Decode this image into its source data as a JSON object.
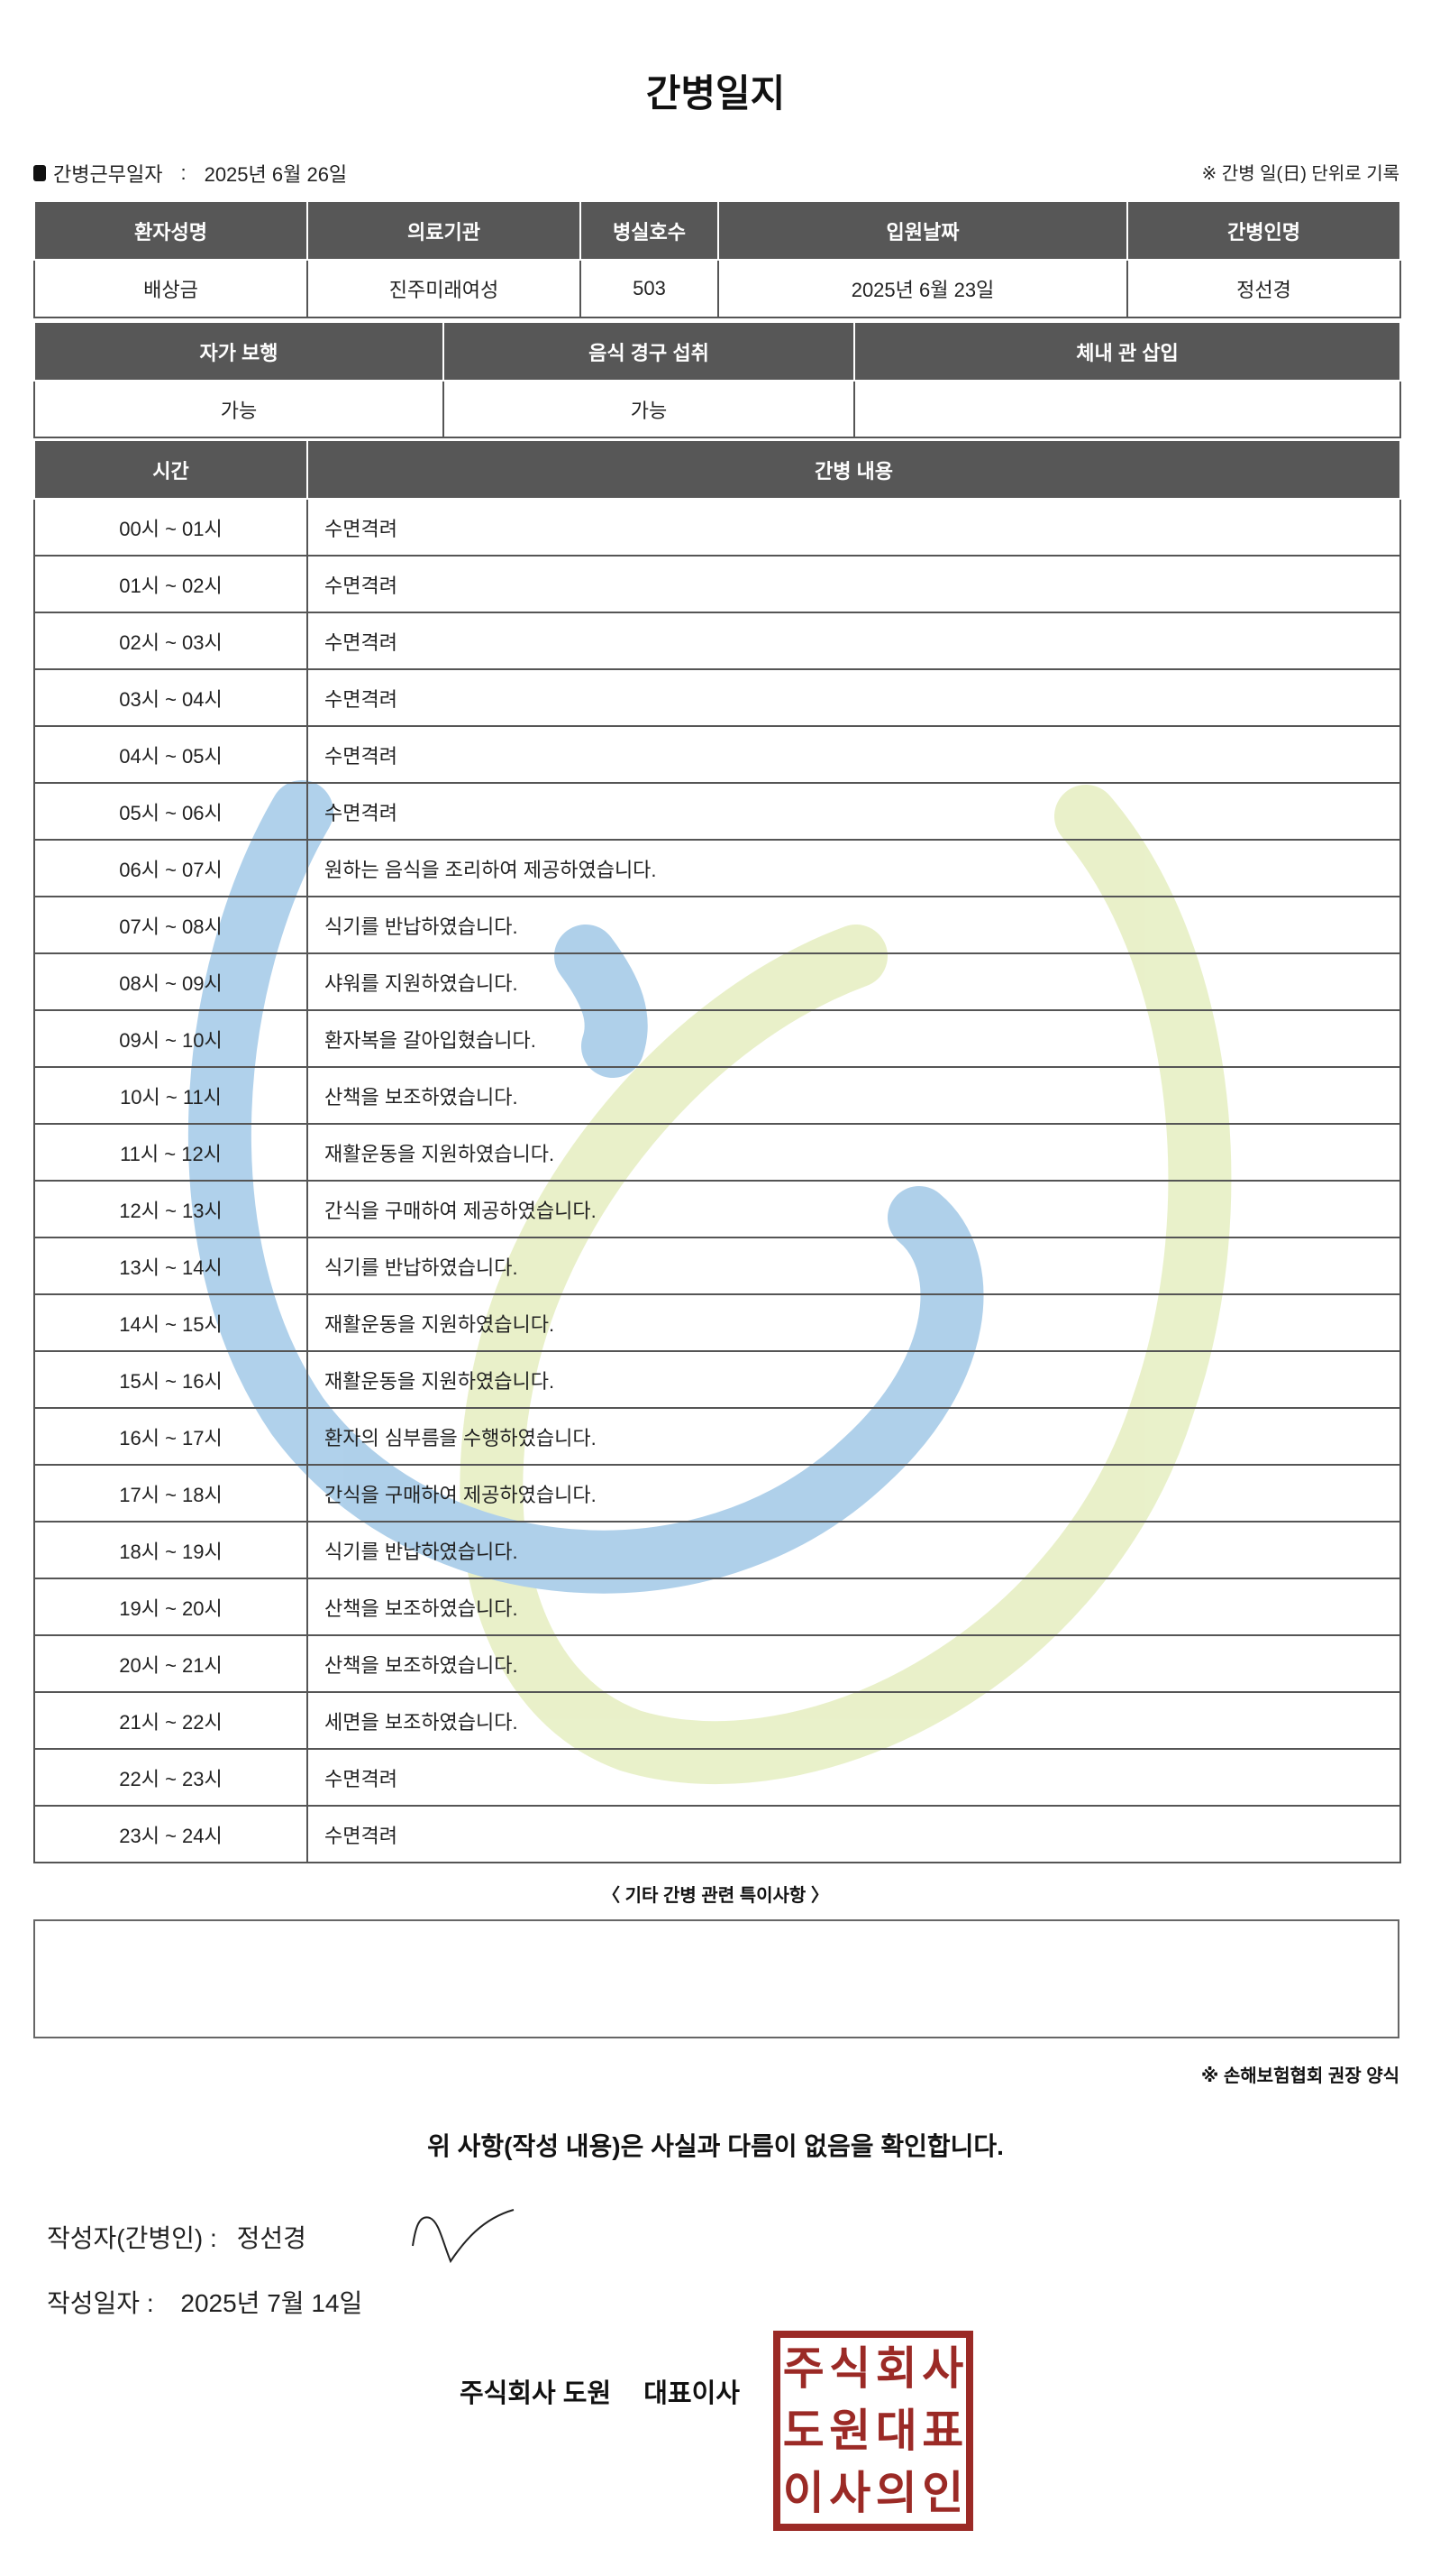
{
  "title": "간병일지",
  "work_date": {
    "label": "간병근무일자",
    "separator": ":",
    "value": "2025년 6월 26일"
  },
  "record_note": "※ 간병 일(日) 단위로 기록",
  "patient_table": {
    "headers": [
      "환자성명",
      "의료기관",
      "병실호수",
      "입원날짜",
      "간병인명"
    ],
    "values": [
      "배상금",
      "진주미래여성",
      "503",
      "2025년 6월 23일",
      "정선경"
    ]
  },
  "status_table": {
    "headers": [
      "자가 보행",
      "음식 경구 섭취",
      "체내 관 삽입"
    ],
    "values": [
      "가능",
      "가능",
      ""
    ]
  },
  "care_table": {
    "headers": [
      "시간",
      "간병 내용"
    ],
    "rows": [
      {
        "time": "00시 ~ 01시",
        "content": "수면격려"
      },
      {
        "time": "01시 ~ 02시",
        "content": "수면격려"
      },
      {
        "time": "02시 ~ 03시",
        "content": "수면격려"
      },
      {
        "time": "03시 ~ 04시",
        "content": "수면격려"
      },
      {
        "time": "04시 ~ 05시",
        "content": "수면격려"
      },
      {
        "time": "05시 ~ 06시",
        "content": "수면격려"
      },
      {
        "time": "06시 ~ 07시",
        "content": "원하는 음식을 조리하여 제공하였습니다."
      },
      {
        "time": "07시 ~ 08시",
        "content": "식기를 반납하였습니다."
      },
      {
        "time": "08시 ~ 09시",
        "content": "샤워를 지원하였습니다."
      },
      {
        "time": "09시 ~ 10시",
        "content": "환자복을 갈아입혔습니다."
      },
      {
        "time": "10시 ~ 11시",
        "content": "산책을 보조하였습니다."
      },
      {
        "time": "11시 ~ 12시",
        "content": "재활운동을 지원하였습니다."
      },
      {
        "time": "12시 ~ 13시",
        "content": "간식을 구매하여 제공하였습니다."
      },
      {
        "time": "13시 ~ 14시",
        "content": "식기를 반납하였습니다."
      },
      {
        "time": "14시 ~ 15시",
        "content": "재활운동을 지원하였습니다."
      },
      {
        "time": "15시 ~ 16시",
        "content": "재활운동을 지원하였습니다."
      },
      {
        "time": "16시 ~ 17시",
        "content": "환자의 심부름을 수행하였습니다."
      },
      {
        "time": "17시 ~ 18시",
        "content": "간식을 구매하여 제공하였습니다."
      },
      {
        "time": "18시 ~ 19시",
        "content": "식기를 반납하였습니다."
      },
      {
        "time": "19시 ~ 20시",
        "content": "산책을 보조하였습니다."
      },
      {
        "time": "20시 ~ 21시",
        "content": "산책을 보조하였습니다."
      },
      {
        "time": "21시 ~ 22시",
        "content": "세면을 보조하였습니다."
      },
      {
        "time": "22시 ~ 23시",
        "content": "수면격려"
      },
      {
        "time": "23시 ~ 24시",
        "content": "수면격려"
      }
    ]
  },
  "special_notes": {
    "label": "〈 기타 간병 관련 특이사항 〉",
    "value": ""
  },
  "form_note": "※ 손해보험협회 권장 양식",
  "confirmation": "위 사항(작성 내용)은 사실과 다름이 없음을 확인합니다.",
  "writer": {
    "label": "작성자(간병인) :",
    "name": "정선경"
  },
  "written_date": {
    "label": "작성일자 :",
    "value": "2025년 7월 14일"
  },
  "company": {
    "name": "주식회사 도원",
    "title": "대표이사"
  },
  "stamp": {
    "text": "주식회사도원대표이사의인",
    "color": "#9b2a26"
  },
  "watermark_colors": {
    "blue": "#7fb3dc",
    "yellow": "#d9e6a0"
  },
  "header_color": "#575757"
}
